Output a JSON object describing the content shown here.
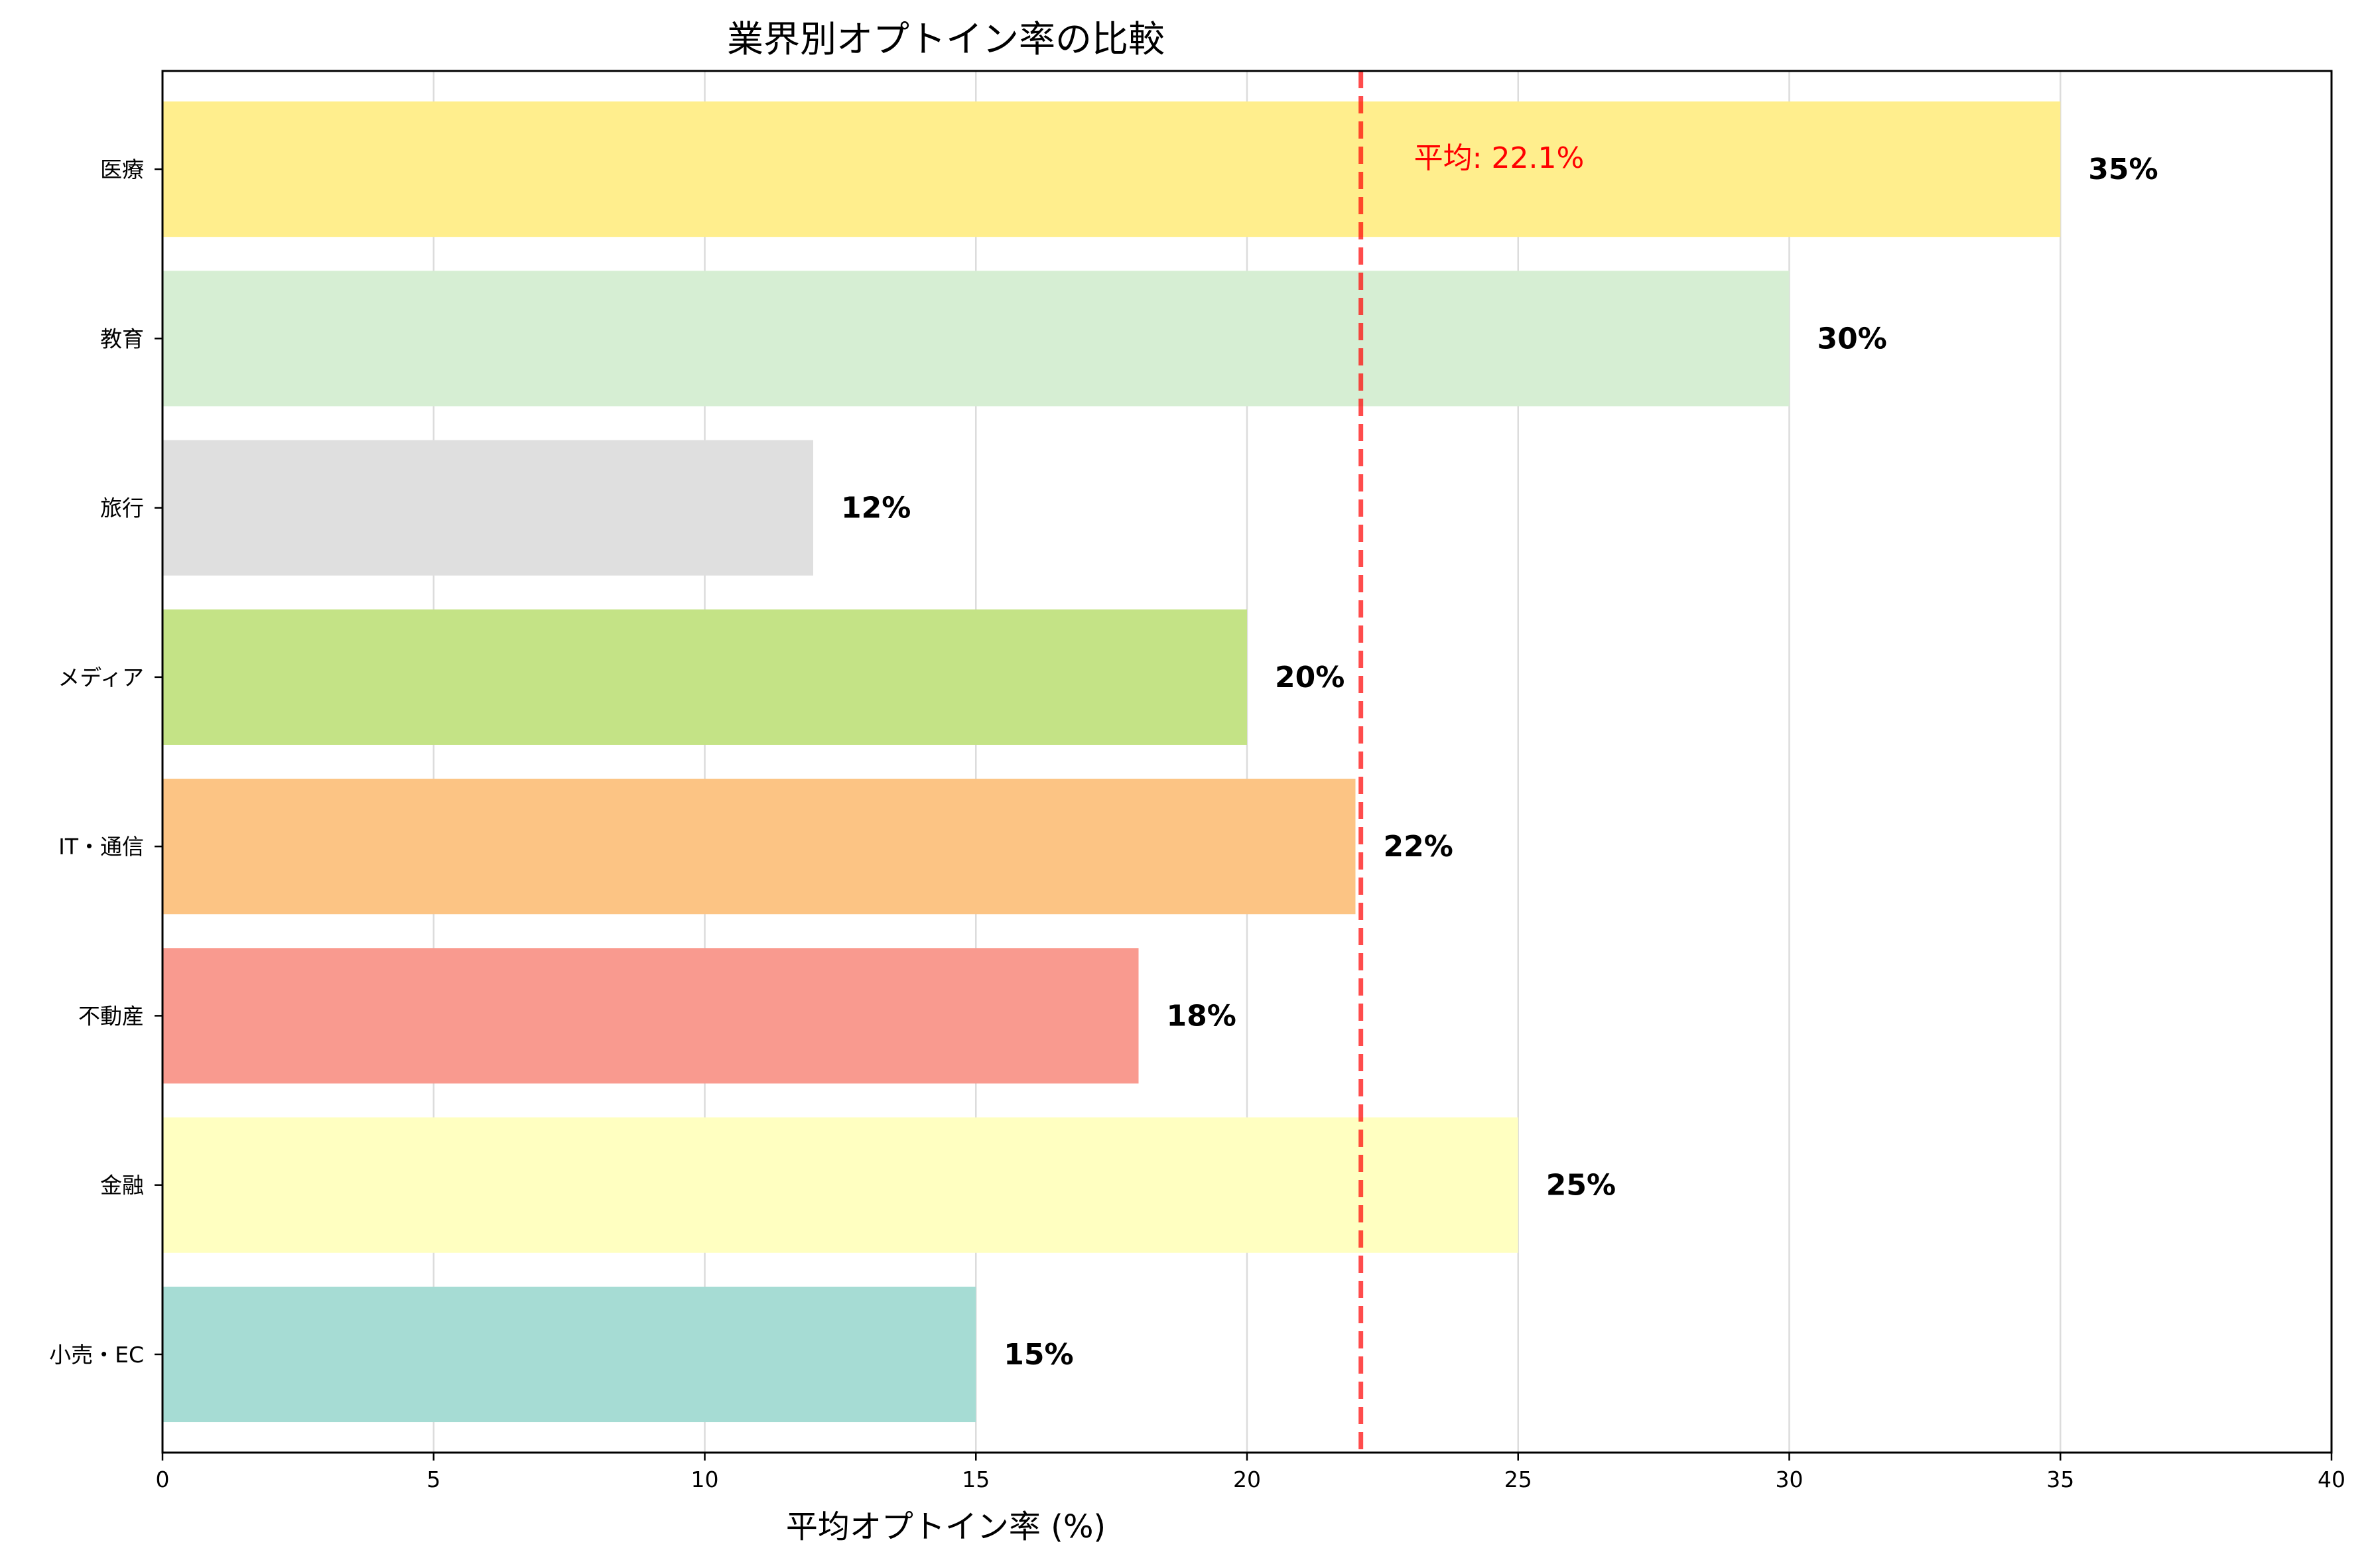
{
  "chart_data": {
    "type": "bar",
    "orientation": "horizontal",
    "title": "業界別オプトイン率の比較",
    "xlabel": "平均オプトイン率 (%)",
    "ylabel": "",
    "xlim": [
      0,
      40
    ],
    "xticks": [
      "0",
      "5",
      "10",
      "15",
      "20",
      "25",
      "30",
      "35",
      "40"
    ],
    "grid": "vertical",
    "categories": [
      "小売・EC",
      "金融",
      "不動産",
      "IT・通信",
      "メディア",
      "旅行",
      "教育",
      "医療"
    ],
    "values": [
      15,
      25,
      18,
      22,
      20,
      12,
      30,
      35
    ],
    "value_labels": [
      "15%",
      "25%",
      "18%",
      "22%",
      "20%",
      "12%",
      "30%",
      "35%"
    ],
    "colors": [
      "#a6dcd4",
      "#ffffc1",
      "#f99a8f",
      "#fcc484",
      "#c4e386",
      "#dfdfdf",
      "#d6eed3",
      "#ffee8d"
    ],
    "mean": {
      "value": 22.1,
      "label": "平均: 22.1%",
      "color": "#ff0000",
      "line_style": "dashed"
    }
  }
}
